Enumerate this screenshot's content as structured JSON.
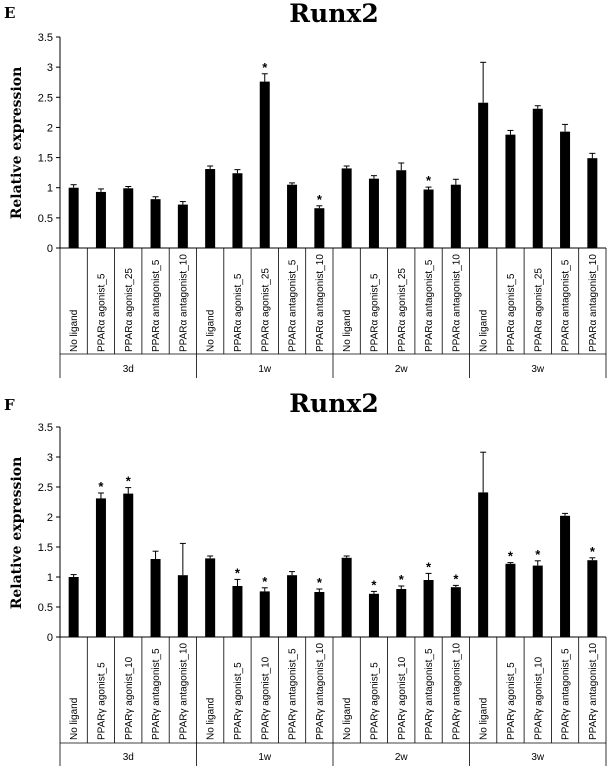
{
  "chart_data": [
    {
      "type": "bar",
      "panel": "E",
      "title": "Runx2",
      "ylabel": "Relative expression",
      "ylim": [
        0,
        3.5
      ],
      "yticks": [
        "0",
        "0.5",
        "1",
        "1.5",
        "2",
        "2.5",
        "3",
        "3.5"
      ],
      "groups": [
        "3d",
        "1w",
        "2w",
        "3w"
      ],
      "categories": [
        "No ligand",
        "PPARα agonist_5",
        "PPARα agonist_25",
        "PPARα antagonist_5",
        "PPARα antagonist_10",
        "No ligand",
        "PPARα agonist_5",
        "PPARα agonist_25",
        "PPARα antagonist_5",
        "PPARα antagonist_10",
        "No ligand",
        "PPARα agonist_5",
        "PPARα agonist_25",
        "PPARα antagonist_5",
        "PPARα antagonist_10",
        "No ligand",
        "PPARα agonist_5",
        "PPARα agonist_25",
        "PPARα antagonist_5",
        "PPARα antagonist_10"
      ],
      "values": [
        1.0,
        0.93,
        0.99,
        0.81,
        0.72,
        1.31,
        1.24,
        2.76,
        1.05,
        0.66,
        1.32,
        1.15,
        1.29,
        0.97,
        1.05,
        2.41,
        1.88,
        2.31,
        1.93,
        1.49
      ],
      "errors": [
        0.05,
        0.05,
        0.03,
        0.04,
        0.05,
        0.05,
        0.06,
        0.13,
        0.03,
        0.04,
        0.04,
        0.05,
        0.12,
        0.04,
        0.09,
        0.67,
        0.07,
        0.05,
        0.12,
        0.08
      ],
      "significant": [
        false,
        false,
        false,
        false,
        false,
        false,
        false,
        true,
        false,
        true,
        false,
        false,
        false,
        true,
        false,
        false,
        false,
        false,
        false,
        false
      ],
      "significance_marker": "*"
    },
    {
      "type": "bar",
      "panel": "F",
      "title": "Runx2",
      "ylabel": "Relative expression",
      "ylim": [
        0,
        3.5
      ],
      "yticks": [
        "0",
        "0.5",
        "1",
        "1.5",
        "2",
        "2.5",
        "3",
        "3.5"
      ],
      "groups": [
        "3d",
        "1w",
        "2w",
        "3w"
      ],
      "categories": [
        "No ligand",
        "PPARγ agonist_5",
        "PPARγ agonist_10",
        "PPARγ antagonist_5",
        "PPARγ antagonist_10",
        "No ligand",
        "PPARγ agonist_5",
        "PPARγ agonist_10",
        "PPARγ antagonist_5",
        "PPARγ antagonist_10",
        "No ligand",
        "PPARγ agonist_5",
        "PPARγ agonist_10",
        "PPARγ antagonist_5",
        "PPARγ antagonist_10",
        "No ligand",
        "PPARγ agonist_5",
        "PPARγ agonist_10",
        "PPARγ antagonist_5",
        "PPARγ antagonist_10"
      ],
      "values": [
        1.0,
        2.31,
        2.39,
        1.3,
        1.03,
        1.31,
        0.85,
        0.76,
        1.03,
        0.75,
        1.32,
        0.72,
        0.8,
        0.95,
        0.83,
        2.41,
        1.22,
        1.19,
        2.02,
        1.28
      ],
      "errors": [
        0.04,
        0.09,
        0.1,
        0.13,
        0.53,
        0.04,
        0.11,
        0.06,
        0.06,
        0.05,
        0.03,
        0.04,
        0.05,
        0.11,
        0.03,
        0.67,
        0.02,
        0.08,
        0.04,
        0.04
      ],
      "significant": [
        false,
        true,
        true,
        false,
        false,
        false,
        true,
        true,
        false,
        true,
        false,
        true,
        true,
        true,
        true,
        false,
        true,
        true,
        false,
        true
      ],
      "significance_marker": "*"
    }
  ]
}
